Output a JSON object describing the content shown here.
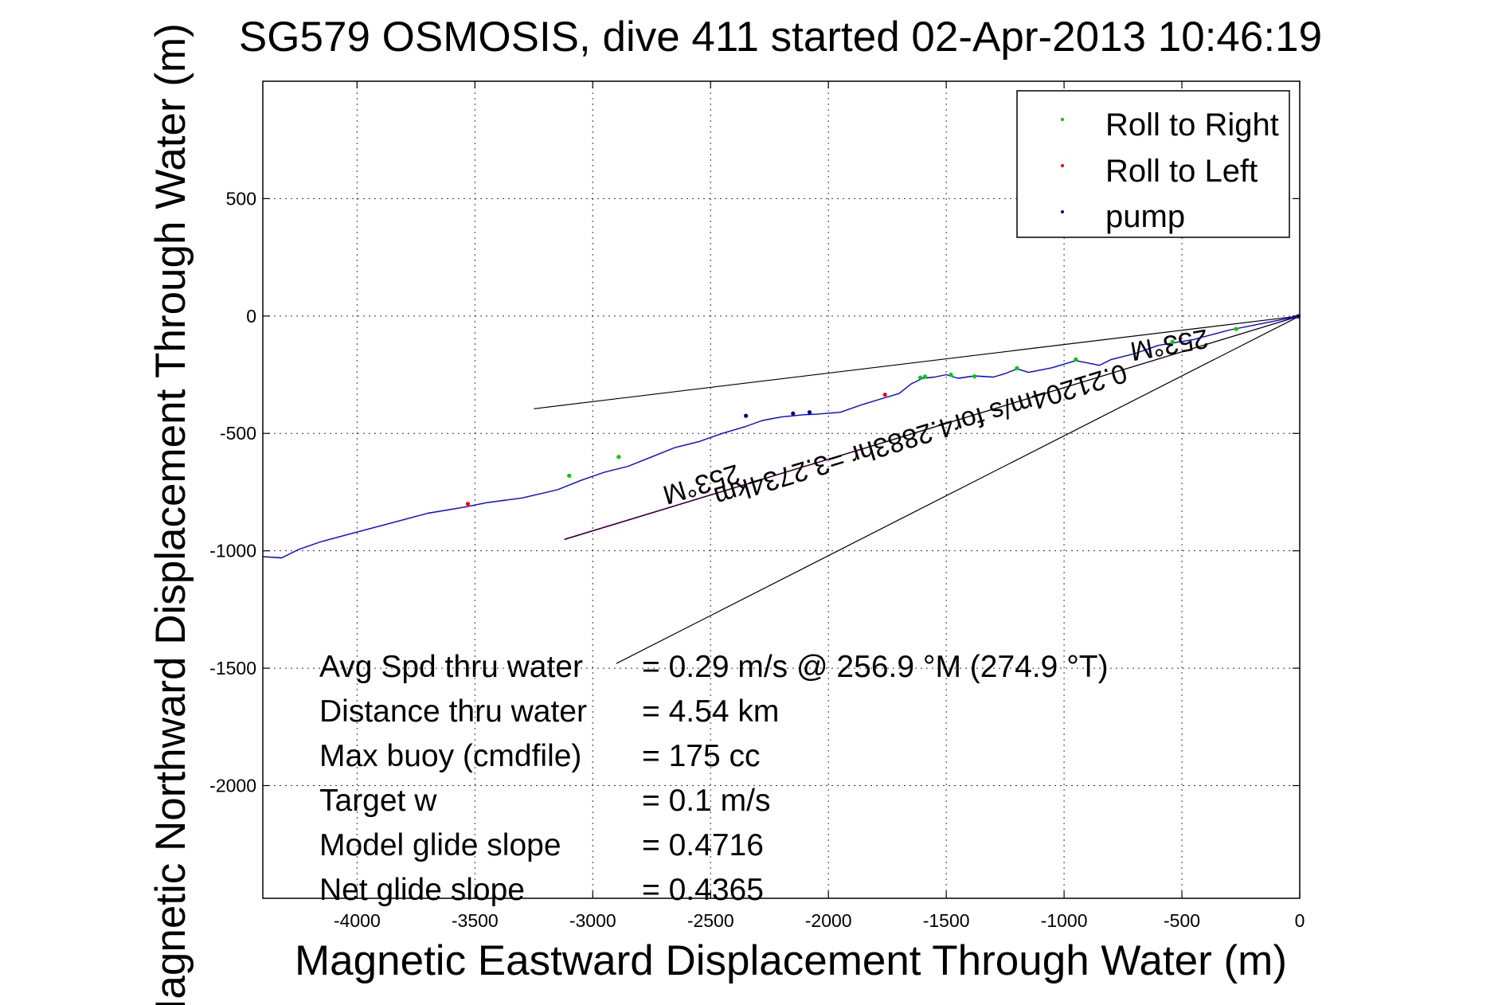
{
  "chart_data": {
    "type": "scatter",
    "title": "SG579 OSMOSIS, dive 411 started 02-Apr-2013 10:46:19",
    "xlabel": "Magnetic Eastward Displacement Through Water (m)",
    "ylabel": "Magnetic Northward Displacement Through Water (m)",
    "xlim": [
      -4400,
      0
    ],
    "ylim": [
      -2480,
      1000
    ],
    "xticks": [
      -4000,
      -3500,
      -3000,
      -2500,
      -2000,
      -1500,
      -1000,
      -500,
      0
    ],
    "xtick_labels": [
      "-4000",
      "-3500",
      "-3000",
      "-2500",
      "-2000",
      "-1500",
      "-1000",
      "-500",
      "0"
    ],
    "yticks": [
      500,
      0,
      -500,
      -1000,
      -1500,
      -2000
    ],
    "ytick_labels": [
      "500",
      "0",
      "-500",
      "-1000",
      "-1500",
      "-2000"
    ],
    "grid": true,
    "legend_position": "top-right",
    "legend": [
      {
        "label": "Roll to Right",
        "color": "#00cc00"
      },
      {
        "label": "Roll to Left",
        "color": "#ff0000"
      },
      {
        "label": "pump",
        "color": "#000080"
      }
    ],
    "track": {
      "name": "track",
      "color": "#0000ff",
      "x": [
        0,
        -150,
        -300,
        -450,
        -600,
        -700,
        -800,
        -850,
        -950,
        -1050,
        -1150,
        -1200,
        -1250,
        -1300,
        -1380,
        -1450,
        -1500,
        -1550,
        -1600,
        -1650,
        -1700,
        -1750,
        -1850,
        -1950,
        -2050,
        -2100,
        -2150,
        -2200,
        -2280,
        -2350,
        -2450,
        -2550,
        -2650,
        -2750,
        -2850,
        -2950,
        -3050,
        -3150,
        -3300,
        -3450,
        -3550,
        -3700,
        -3850,
        -4000,
        -4150,
        -4250,
        -4320,
        -4400
      ],
      "y": [
        0,
        -30,
        -60,
        -100,
        -125,
        -160,
        -185,
        -210,
        -190,
        -220,
        -240,
        -225,
        -245,
        -260,
        -255,
        -265,
        -250,
        -260,
        -265,
        -290,
        -330,
        -345,
        -375,
        -410,
        -418,
        -420,
        -425,
        -430,
        -445,
        -470,
        -500,
        -535,
        -560,
        -600,
        -640,
        -665,
        -700,
        -740,
        -775,
        -795,
        -815,
        -840,
        -880,
        -920,
        -960,
        -995,
        -1030,
        -1025
      ]
    },
    "markers": {
      "roll_right": {
        "x": [
          -270,
          -540,
          -950,
          -1200,
          -1380,
          -1480,
          -1590,
          -1610,
          -2890,
          -3100
        ],
        "y": [
          -55,
          -110,
          -185,
          -222,
          -257,
          -250,
          -258,
          -262,
          -600,
          -680
        ]
      },
      "roll_left": {
        "x": [
          -10,
          -1760,
          -3530
        ],
        "y": [
          -2,
          -335,
          -800
        ]
      },
      "pump": {
        "x": [
          -5,
          -2080,
          -2150,
          -2350
        ],
        "y": [
          -1,
          -410,
          -415,
          -425
        ]
      }
    },
    "lines": [
      {
        "name": "upper-heading-line",
        "color": "#000000",
        "x": [
          0,
          -3250
        ],
        "y": [
          0,
          -395
        ]
      },
      {
        "name": "lower-heading-line",
        "color": "#000000",
        "x": [
          0,
          -2900
        ],
        "y": [
          0,
          -1480
        ]
      },
      {
        "name": "mean-heading-line",
        "color": "#ff00ff",
        "x": [
          0,
          -3120
        ],
        "y": [
          0,
          -950
        ]
      },
      {
        "name": "mean-heading-line-dark",
        "color": "#000000",
        "x": [
          0,
          -3120
        ],
        "y": [
          0,
          -952
        ]
      }
    ],
    "annotations": [
      {
        "text": "253°M",
        "x": -560,
        "y": -85,
        "rotation": 170
      },
      {
        "text": "0.21204m/s for4.2883hr =3.2734km",
        "x": -1620,
        "y": -470,
        "rotation": 163
      },
      {
        "text": "253°M",
        "x": -2550,
        "y": -680,
        "rotation": 163
      }
    ],
    "stats": [
      {
        "label": "Avg Spd thru water",
        "value": "=  0.29 m/s @ 256.9 °M (274.9 °T)"
      },
      {
        "label": "Distance thru water",
        "value": "=  4.54 km"
      },
      {
        "label": "Max buoy (cmdfile)",
        "value": "= 175 cc"
      },
      {
        "label": "Target w",
        "value": "= 0.1 m/s"
      },
      {
        "label": "Model glide slope",
        "value": "= 0.4716"
      },
      {
        "label": "Net glide slope",
        "value": "= 0.4365"
      }
    ]
  }
}
